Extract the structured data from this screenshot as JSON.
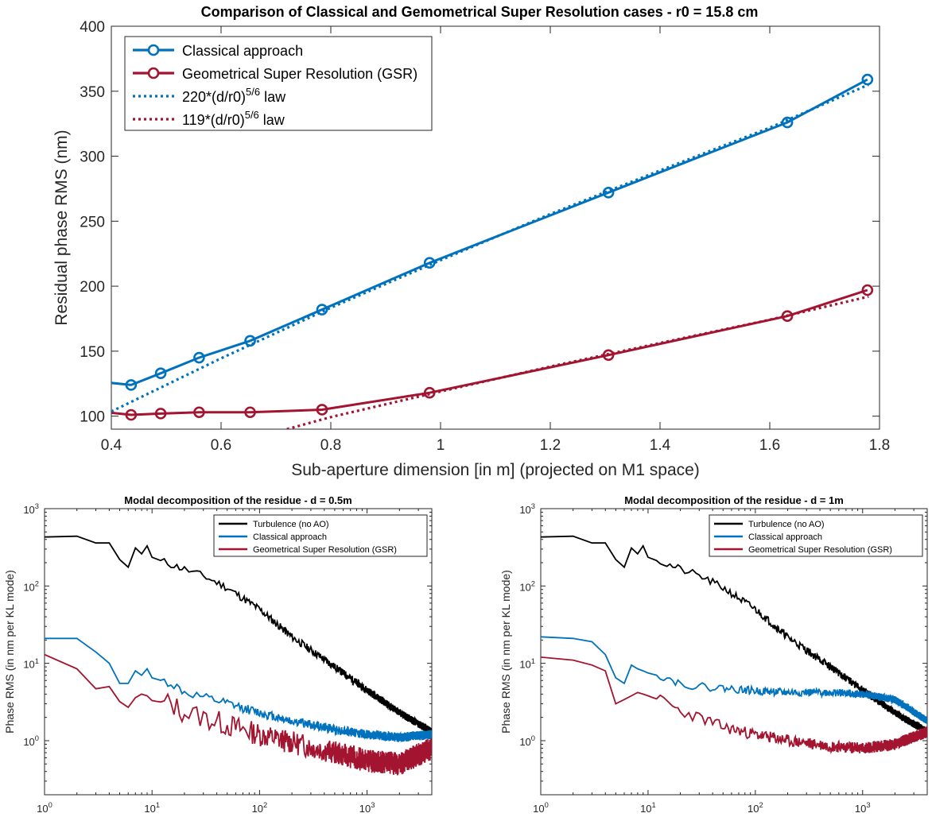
{
  "charts": [
    {
      "id": "main",
      "type": "line",
      "title": "Comparison of Classical and Gemometrical Super Resolution cases - r0 = 15.8 cm",
      "xlabel": "Sub-aperture dimension [in m] (projected on M1 space)",
      "ylabel": "Residual phase RMS (nm)",
      "xlim": [
        0.4,
        1.8
      ],
      "ylim": [
        90,
        400
      ],
      "x_scale": "linear",
      "y_scale": "linear",
      "xticks": [
        0.4,
        0.6,
        0.8,
        1,
        1.2,
        1.4,
        1.6,
        1.8
      ],
      "xtick_labels": [
        "0.4",
        "0.6",
        "0.8",
        "1",
        "1.2",
        "1.4",
        "1.6",
        "1.8"
      ],
      "yticks": [
        100,
        150,
        200,
        250,
        300,
        350,
        400
      ],
      "ytick_labels": [
        "100",
        "150",
        "200",
        "250",
        "300",
        "350",
        "400"
      ],
      "legend_position": "top-left",
      "series": [
        {
          "name": "Classical approach",
          "color": "#0072bd",
          "style": "solid-marker",
          "x": [
            0.39,
            0.436,
            0.49,
            0.56,
            0.653,
            0.784,
            0.98,
            1.306,
            1.632,
            1.778
          ],
          "y": [
            126,
            124,
            133,
            145,
            158,
            182,
            218,
            272,
            326,
            359
          ]
        },
        {
          "name": "Geometrical Super Resolution (GSR)",
          "color": "#a2142f",
          "style": "solid-marker",
          "x": [
            0.39,
            0.436,
            0.49,
            0.56,
            0.653,
            0.784,
            0.98,
            1.306,
            1.632,
            1.778
          ],
          "y": [
            103,
            101,
            102,
            103,
            103,
            105,
            118,
            147,
            177,
            197
          ]
        },
        {
          "name": "220*(d/r0)5/6 law",
          "label_base": "220*(d/r0)",
          "label_sup": "5/6",
          "label_tail": " law",
          "color": "#0072bd",
          "style": "dotted",
          "x": [
            0.4,
            0.6,
            0.8,
            1.0,
            1.2,
            1.4,
            1.6,
            1.78
          ],
          "y": [
            103.6,
            144.5,
            183.4,
            220.0,
            255.5,
            289.0,
            322.0,
            355.0
          ]
        },
        {
          "name": "119*(d/r0)5/6 law",
          "label_base": "119*(d/r0)",
          "label_sup": "5/6",
          "label_tail": " law",
          "color": "#a2142f",
          "style": "dotted",
          "x": [
            0.72,
            0.8,
            1.0,
            1.2,
            1.4,
            1.6,
            1.78
          ],
          "y": [
            90,
            99.3,
            119.0,
            138.2,
            156.3,
            174.2,
            192.0
          ]
        }
      ]
    },
    {
      "id": "bottom-left",
      "type": "line",
      "title": "Modal decomposition of the residue - d = 0.5m",
      "xlabel": "KL number",
      "ylabel": "Phase RMS (in nm per KL mode)",
      "x_scale": "log",
      "y_scale": "log",
      "xlim": [
        1,
        4000
      ],
      "ylim": [
        0.2,
        1000
      ],
      "xtick_labels": [
        {
          "base": "10",
          "exp": "0"
        },
        {
          "base": "10",
          "exp": "1"
        },
        {
          "base": "10",
          "exp": "2"
        },
        {
          "base": "10",
          "exp": "3"
        }
      ],
      "ytick_labels": [
        {
          "base": "10",
          "exp": "0"
        },
        {
          "base": "10",
          "exp": "1"
        },
        {
          "base": "10",
          "exp": "2"
        },
        {
          "base": "10",
          "exp": "3"
        }
      ],
      "legend_position": "top-right",
      "series": [
        {
          "name": "Turbulence (no AO)",
          "color": "#000000",
          "x": [
            1,
            2,
            3,
            4,
            5,
            6,
            7,
            8,
            9,
            10,
            15,
            20,
            30,
            50,
            100,
            200,
            500,
            1000,
            2000,
            4000
          ],
          "y": [
            430,
            440,
            360,
            360,
            220,
            175,
            310,
            260,
            330,
            235,
            190,
            165,
            135,
            95,
            50,
            22,
            9,
            4.5,
            2.3,
            1.3
          ],
          "noise": 0.1
        },
        {
          "name": "Classical approach",
          "color": "#0072bd",
          "x": [
            1,
            2,
            3,
            4,
            5,
            6,
            7,
            8,
            9,
            10,
            15,
            20,
            30,
            50,
            100,
            200,
            500,
            1000,
            2000,
            4000
          ],
          "y": [
            21,
            21,
            14,
            10,
            5.5,
            5.5,
            8,
            7,
            8.5,
            6.5,
            5.5,
            4.2,
            3.6,
            3.0,
            2.3,
            1.8,
            1.4,
            1.2,
            1.1,
            1.2
          ],
          "noise": 0.12
        },
        {
          "name": "Geometrical Super Resolution (GSR)",
          "color": "#a2142f",
          "x": [
            1,
            2,
            3,
            4,
            5,
            6,
            7,
            8,
            9,
            10,
            15,
            20,
            30,
            50,
            100,
            200,
            500,
            1000,
            2000,
            4000
          ],
          "y": [
            13,
            8.5,
            4.7,
            5.0,
            3.2,
            2.7,
            3.6,
            4.0,
            3.8,
            3.3,
            3.0,
            2.3,
            2.0,
            1.6,
            1.2,
            0.95,
            0.7,
            0.55,
            0.5,
            0.8
          ],
          "noise": 0.3
        }
      ]
    },
    {
      "id": "bottom-right",
      "type": "line",
      "title": "Modal decomposition of the residue - d = 1m",
      "xlabel": "KL number",
      "ylabel": "Phase RMS (in nm per KL mode)",
      "x_scale": "log",
      "y_scale": "log",
      "xlim": [
        1,
        4000
      ],
      "ylim": [
        0.2,
        1000
      ],
      "xtick_labels": [
        {
          "base": "10",
          "exp": "0"
        },
        {
          "base": "10",
          "exp": "1"
        },
        {
          "base": "10",
          "exp": "2"
        },
        {
          "base": "10",
          "exp": "3"
        }
      ],
      "ytick_labels": [
        {
          "base": "10",
          "exp": "0"
        },
        {
          "base": "10",
          "exp": "1"
        },
        {
          "base": "10",
          "exp": "2"
        },
        {
          "base": "10",
          "exp": "3"
        }
      ],
      "legend_position": "top-right",
      "series": [
        {
          "name": "Turbulence (no AO)",
          "color": "#000000",
          "x": [
            1,
            2,
            3,
            4,
            5,
            6,
            7,
            8,
            9,
            10,
            15,
            20,
            30,
            50,
            100,
            200,
            500,
            1000,
            2000,
            4000
          ],
          "y": [
            430,
            440,
            360,
            360,
            220,
            175,
            310,
            260,
            330,
            235,
            190,
            165,
            135,
            95,
            50,
            22,
            9,
            4.5,
            2.3,
            1.3
          ],
          "noise": 0.1
        },
        {
          "name": "Classical approach",
          "color": "#0072bd",
          "x": [
            1,
            2,
            3,
            4,
            5,
            6,
            7,
            8,
            9,
            10,
            15,
            20,
            30,
            50,
            100,
            200,
            500,
            1000,
            2000,
            4000
          ],
          "y": [
            22,
            21,
            19,
            13,
            6.5,
            5.5,
            9.5,
            8.5,
            8,
            7.5,
            6.5,
            5.5,
            5,
            4.8,
            4.4,
            4.2,
            4.2,
            4.0,
            3.4,
            1.8
          ],
          "noise": 0.1
        },
        {
          "name": "Geometrical Super Resolution (GSR)",
          "color": "#a2142f",
          "x": [
            1,
            2,
            3,
            4,
            5,
            6,
            7,
            8,
            9,
            10,
            15,
            20,
            30,
            50,
            100,
            200,
            500,
            1000,
            2000,
            4000
          ],
          "y": [
            12,
            11,
            9.5,
            8,
            3.0,
            3.4,
            3.8,
            4.2,
            4.0,
            3.8,
            3.1,
            2.4,
            2.0,
            1.5,
            1.2,
            1.0,
            0.85,
            0.8,
            0.9,
            1.3
          ],
          "noise": 0.15
        }
      ]
    }
  ]
}
